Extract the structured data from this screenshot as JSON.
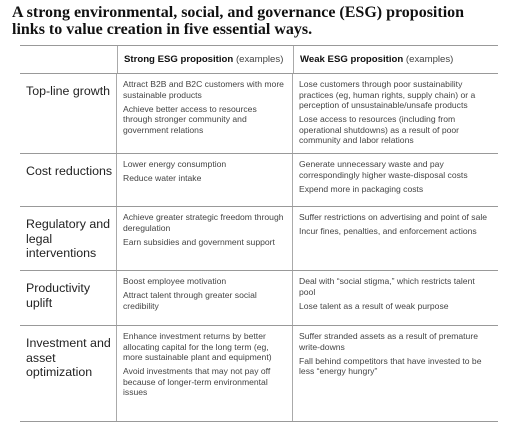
{
  "title": "A strong environmental, social, and governance (ESG) proposition links to value creation in five essential ways.",
  "headers": {
    "strong": "Strong ESG proposition",
    "weak": "Weak ESG proposition",
    "examples": "(examples)"
  },
  "rows": [
    {
      "category": "Top-line growth",
      "strong": [
        "Attract B2B and B2C customers with more sustainable products",
        "Achieve better access to resources through stronger community and government relations"
      ],
      "weak": [
        "Lose customers through poor sustainability practices (eg, human rights, supply chain) or a perception of unsustainable/unsafe products",
        "Lose access to resources (including from operational shutdowns) as a result of poor community and labor relations"
      ]
    },
    {
      "category": "Cost reductions",
      "strong": [
        "Lower energy consumption",
        "Reduce water intake"
      ],
      "weak": [
        "Generate unnecessary waste and pay correspondingly higher waste-disposal costs",
        "Expend more in packaging costs"
      ]
    },
    {
      "category": "Regulatory and legal interventions",
      "strong": [
        "Achieve greater strategic freedom through deregulation",
        "Earn subsidies and government support"
      ],
      "weak": [
        "Suffer restrictions on advertising and point of sale",
        "Incur fines, penalties, and enforcement actions"
      ]
    },
    {
      "category": "Productivity uplift",
      "strong": [
        "Boost employee motivation",
        "Attract talent through greater social credibility"
      ],
      "weak": [
        "Deal with “social stigma,” which restricts talent pool",
        "Lose talent as a result of weak purpose"
      ]
    },
    {
      "category": "Investment and asset optimization",
      "strong": [
        "Enhance investment returns by better allocating capital for the long term (eg, more sustainable plant and equipment)",
        "Avoid investments that may not pay off because of longer-term environmental issues"
      ],
      "weak": [
        "Suffer stranded assets as a result of premature write-downs",
        "Fall behind competitors that have invested to be less “energy hungry”"
      ]
    }
  ]
}
